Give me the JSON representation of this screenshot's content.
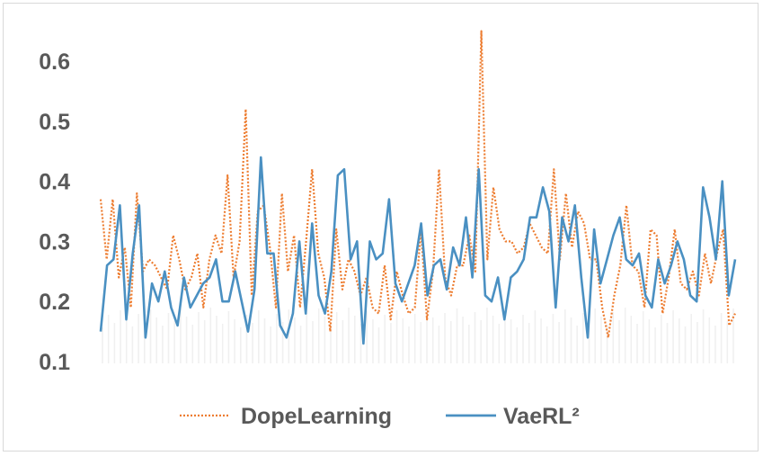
{
  "chart_data": {
    "type": "line",
    "title": "",
    "xlabel": "",
    "ylabel": "",
    "ylim": [
      0.1,
      0.65
    ],
    "yticks": [
      0.1,
      0.2,
      0.3,
      0.4,
      0.5,
      0.6
    ],
    "ytick_labels": [
      "0.1",
      "0.2",
      "0.3",
      "0.4",
      "0.5",
      "0.6"
    ],
    "grid": false,
    "legend_position": "bottom",
    "series": [
      {
        "name": "DopeLearning",
        "color": "#ed7d31",
        "style": "dotted",
        "values": [
          0.37,
          0.27,
          0.37,
          0.24,
          0.29,
          0.19,
          0.38,
          0.25,
          0.27,
          0.26,
          0.24,
          0.22,
          0.31,
          0.27,
          0.22,
          0.24,
          0.28,
          0.19,
          0.27,
          0.31,
          0.28,
          0.41,
          0.24,
          0.3,
          0.52,
          0.21,
          0.35,
          0.36,
          0.29,
          0.19,
          0.38,
          0.25,
          0.31,
          0.19,
          0.3,
          0.42,
          0.28,
          0.24,
          0.15,
          0.32,
          0.22,
          0.27,
          0.25,
          0.21,
          0.24,
          0.19,
          0.18,
          0.26,
          0.17,
          0.25,
          0.21,
          0.18,
          0.19,
          0.32,
          0.17,
          0.25,
          0.42,
          0.24,
          0.21,
          0.26,
          0.26,
          0.31,
          0.25,
          0.65,
          0.27,
          0.39,
          0.32,
          0.3,
          0.3,
          0.28,
          0.29,
          0.33,
          0.31,
          0.29,
          0.28,
          0.42,
          0.27,
          0.38,
          0.29,
          0.35,
          0.33,
          0.27,
          0.27,
          0.19,
          0.14,
          0.21,
          0.26,
          0.36,
          0.26,
          0.25,
          0.19,
          0.32,
          0.31,
          0.18,
          0.24,
          0.32,
          0.23,
          0.22,
          0.25,
          0.21,
          0.28,
          0.23,
          0.28,
          0.32,
          0.16,
          0.18
        ]
      },
      {
        "name": "VaeRL²",
        "color": "#4a90c2",
        "style": "solid",
        "values": [
          0.15,
          0.26,
          0.27,
          0.36,
          0.17,
          0.28,
          0.36,
          0.14,
          0.23,
          0.2,
          0.25,
          0.19,
          0.16,
          0.24,
          0.19,
          0.21,
          0.23,
          0.24,
          0.27,
          0.2,
          0.2,
          0.25,
          0.2,
          0.15,
          0.22,
          0.44,
          0.28,
          0.28,
          0.16,
          0.14,
          0.18,
          0.3,
          0.18,
          0.33,
          0.21,
          0.18,
          0.25,
          0.41,
          0.42,
          0.27,
          0.3,
          0.13,
          0.3,
          0.27,
          0.28,
          0.37,
          0.23,
          0.2,
          0.23,
          0.26,
          0.33,
          0.21,
          0.26,
          0.27,
          0.22,
          0.29,
          0.26,
          0.34,
          0.24,
          0.42,
          0.21,
          0.2,
          0.24,
          0.17,
          0.24,
          0.25,
          0.27,
          0.34,
          0.34,
          0.39,
          0.35,
          0.19,
          0.34,
          0.3,
          0.36,
          0.24,
          0.14,
          0.32,
          0.23,
          0.27,
          0.31,
          0.34,
          0.27,
          0.26,
          0.28,
          0.21,
          0.19,
          0.27,
          0.23,
          0.26,
          0.3,
          0.27,
          0.21,
          0.2,
          0.39,
          0.34,
          0.27,
          0.4,
          0.21,
          0.27
        ]
      }
    ]
  }
}
